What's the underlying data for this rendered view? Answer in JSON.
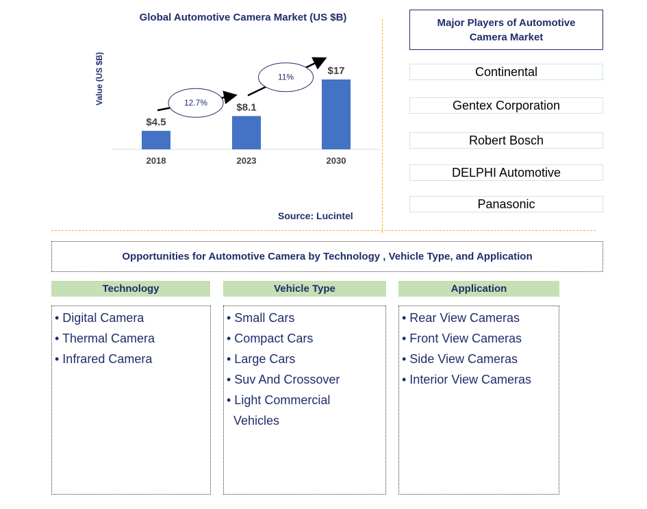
{
  "chart_data": {
    "type": "bar",
    "title": "Global Automotive Camera Market (US $B)",
    "ylabel": "Value (US $B)",
    "categories": [
      "2018",
      "2023",
      "2030"
    ],
    "values": [
      4.5,
      8.1,
      17
    ],
    "data_labels": [
      "$4.5",
      "$8.1",
      "$17"
    ],
    "bar_color": "#4472c4",
    "ylim": [
      0,
      18
    ],
    "annotations": [
      {
        "from": "2018",
        "to": "2023",
        "label": "12.7%"
      },
      {
        "from": "2023",
        "to": "2030",
        "label": "11%"
      }
    ]
  },
  "source": "Source: Lucintel",
  "players": {
    "title": "Major Players of Automotive Camera Market",
    "items": [
      "Continental",
      "Gentex Corporation",
      "Robert Bosch",
      "DELPHI Automotive",
      "Panasonic"
    ]
  },
  "opportunities": {
    "title": "Opportunities for Automotive Camera by Technology , Vehicle Type, and Application",
    "columns": [
      {
        "heading": "Technology",
        "items": [
          "• Digital Camera",
          "• Thermal Camera",
          "• Infrared Camera"
        ]
      },
      {
        "heading": "Vehicle Type",
        "items": [
          "• Small Cars",
          "• Compact Cars",
          "• Large Cars",
          "• Suv And Crossover",
          "• Light Commercial",
          "Vehicles"
        ]
      },
      {
        "heading": "Application",
        "items": [
          "• Rear View Cameras",
          "• Front View Cameras",
          "• Side View Cameras",
          "• Interior View Cameras"
        ]
      }
    ]
  },
  "colors": {
    "title_blue": "#1f2d6b",
    "header_green": "#c5e0b4",
    "separator": "#f0b400"
  }
}
